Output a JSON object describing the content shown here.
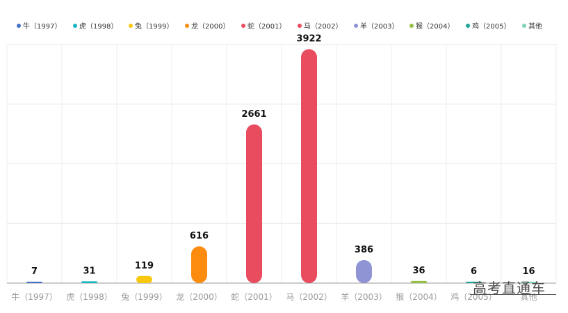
{
  "chart_data": {
    "type": "bar",
    "categories": [
      "牛（1997）",
      "虎（1998）",
      "兔（1999）",
      "龙（2000）",
      "蛇（2001）",
      "马（2002）",
      "羊（2003）",
      "猴（2004）",
      "鸡（2005）",
      "其他"
    ],
    "values": [
      7,
      31,
      119,
      616,
      2661,
      3922,
      386,
      36,
      6,
      16
    ],
    "colors": [
      "#4472c4",
      "#17b6c4",
      "#f9c80e",
      "#fb8c10",
      "#e94c5f",
      "#e94c5f",
      "#8e94d4",
      "#95c043",
      "#1aa596",
      "#7fd1b9"
    ],
    "legend": [
      "牛（1997）",
      "虎（1998）",
      "兔（1999）",
      "龙（2000）",
      "蛇（2001）",
      "马（2002）",
      "羊（2003）",
      "猴（2004）",
      "鸡（2005）",
      "其他"
    ],
    "legend_position": "top",
    "title": "",
    "xlabel": "",
    "ylabel": "",
    "ylim": [
      0,
      4000
    ],
    "grid": true
  },
  "watermark": "高考直通车"
}
